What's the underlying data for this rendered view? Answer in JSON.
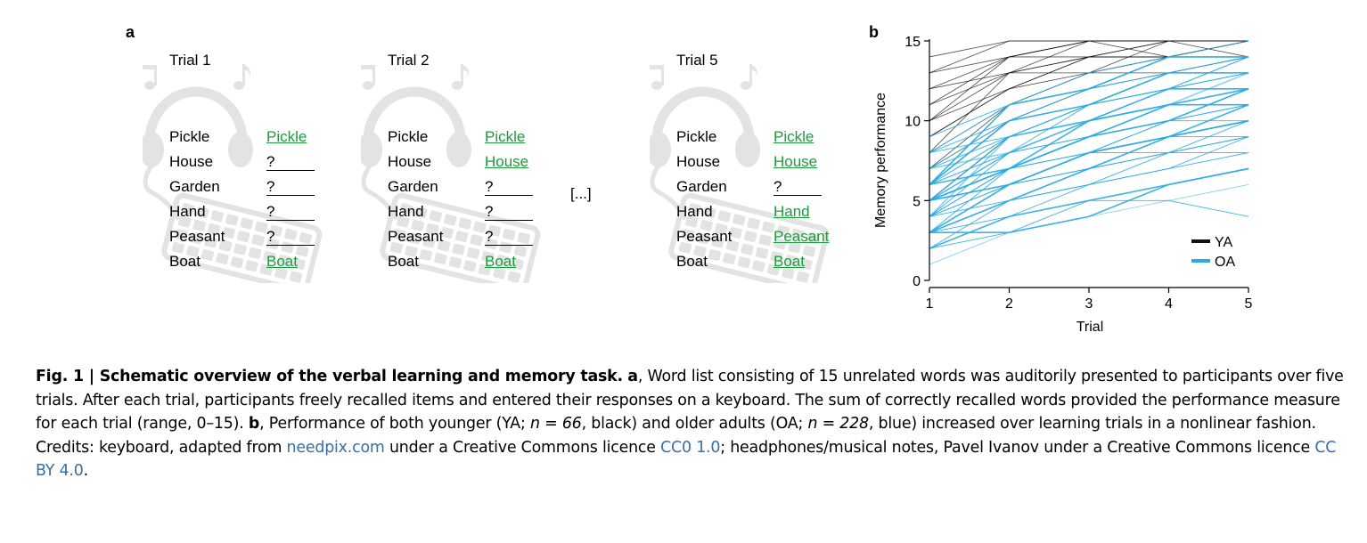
{
  "panel_a": {
    "label": "a",
    "trials": [
      {
        "title": "Trial 1",
        "rows": [
          {
            "cue": "Pickle",
            "response": "Pickle",
            "correct": true
          },
          {
            "cue": "House",
            "response": "?",
            "correct": false
          },
          {
            "cue": "Garden",
            "response": "?",
            "correct": false
          },
          {
            "cue": "Hand",
            "response": "?",
            "correct": false
          },
          {
            "cue": "Peasant",
            "response": "?",
            "correct": false
          },
          {
            "cue": "Boat",
            "response": "Boat",
            "correct": true
          }
        ]
      },
      {
        "title": "Trial 2",
        "rows": [
          {
            "cue": "Pickle",
            "response": "Pickle",
            "correct": true
          },
          {
            "cue": "House",
            "response": "House",
            "correct": true
          },
          {
            "cue": "Garden",
            "response": "?",
            "correct": false
          },
          {
            "cue": "Hand",
            "response": "?",
            "correct": false
          },
          {
            "cue": "Peasant",
            "response": "?",
            "correct": false
          },
          {
            "cue": "Boat",
            "response": "Boat",
            "correct": true
          }
        ]
      },
      {
        "title": "Trial 5",
        "rows": [
          {
            "cue": "Pickle",
            "response": "Pickle",
            "correct": true
          },
          {
            "cue": "House",
            "response": "House",
            "correct": true
          },
          {
            "cue": "Garden",
            "response": "?",
            "correct": false
          },
          {
            "cue": "Hand",
            "response": "Hand",
            "correct": true
          },
          {
            "cue": "Peasant",
            "response": "Peasant",
            "correct": true
          },
          {
            "cue": "Boat",
            "response": "Boat",
            "correct": true
          }
        ]
      }
    ],
    "ellipsis": "[...]",
    "colors": {
      "correct": "#1f9a3d",
      "decoration": "#e3e3e3"
    },
    "icons": [
      "headphones-icon",
      "musical-note-icon",
      "keyboard-icon"
    ]
  },
  "panel_b": {
    "label": "b",
    "chart_data": {
      "type": "line",
      "title": "",
      "xlabel": "Trial",
      "ylabel": "Memory performance",
      "x": [
        1,
        2,
        3,
        4,
        5
      ],
      "xlim": [
        1,
        5
      ],
      "ylim": [
        0,
        15
      ],
      "xticks": [
        "1",
        "2",
        "3",
        "4",
        "5"
      ],
      "yticks": [
        "0",
        "5",
        "10",
        "15"
      ],
      "grid": false,
      "legend_position": "bottom-right",
      "legend": [
        {
          "name": "YA",
          "color": "#111111"
        },
        {
          "name": "OA",
          "color": "#29abe2"
        }
      ],
      "series": [
        {
          "name": "YA",
          "color": "#111111",
          "lines": [
            [
              11,
              14,
              15,
              15,
              15
            ],
            [
              13,
              15,
              15,
              15,
              15
            ],
            [
              10,
              13,
              14,
              15,
              15
            ],
            [
              12,
              14,
              15,
              14,
              15
            ],
            [
              9,
              12,
              14,
              14,
              15
            ],
            [
              8,
              13,
              13,
              14,
              14
            ],
            [
              14,
              15,
              15,
              15,
              15
            ],
            [
              7,
              11,
              13,
              14,
              14
            ],
            [
              10,
              14,
              14,
              15,
              15
            ],
            [
              6,
              10,
              12,
              13,
              14
            ],
            [
              12,
              13,
              15,
              15,
              15
            ],
            [
              9,
              12,
              13,
              15,
              14
            ],
            [
              11,
              13,
              14,
              14,
              15
            ],
            [
              8,
              11,
              13,
              13,
              14
            ],
            [
              13,
              14,
              15,
              15,
              15
            ],
            [
              5,
              9,
              11,
              13,
              13
            ],
            [
              10,
              12,
              14,
              14,
              15
            ],
            [
              7,
              10,
              12,
              14,
              14
            ]
          ]
        },
        {
          "name": "OA",
          "color": "#29abe2",
          "lines": [
            [
              5,
              8,
              10,
              11,
              12
            ],
            [
              4,
              7,
              9,
              10,
              11
            ],
            [
              6,
              9,
              11,
              12,
              13
            ],
            [
              3,
              6,
              8,
              9,
              10
            ],
            [
              7,
              10,
              12,
              13,
              13
            ],
            [
              4,
              6,
              7,
              9,
              9
            ],
            [
              5,
              7,
              9,
              10,
              12
            ],
            [
              3,
              5,
              6,
              8,
              8
            ],
            [
              6,
              8,
              10,
              12,
              12
            ],
            [
              2,
              4,
              5,
              6,
              7
            ],
            [
              8,
              11,
              12,
              13,
              14
            ],
            [
              4,
              8,
              9,
              11,
              11
            ],
            [
              5,
              9,
              10,
              11,
              13
            ],
            [
              3,
              4,
              6,
              7,
              9
            ],
            [
              7,
              9,
              11,
              12,
              14
            ],
            [
              6,
              10,
              11,
              13,
              13
            ],
            [
              1,
              3,
              4,
              5,
              6
            ],
            [
              4,
              5,
              7,
              8,
              10
            ],
            [
              5,
              6,
              8,
              9,
              11
            ],
            [
              8,
              10,
              12,
              14,
              14
            ],
            [
              3,
              6,
              7,
              8,
              9
            ],
            [
              6,
              7,
              9,
              11,
              11
            ],
            [
              2,
              3,
              5,
              5,
              4
            ],
            [
              5,
              8,
              9,
              10,
              10
            ],
            [
              7,
              8,
              10,
              11,
              12
            ],
            [
              4,
              7,
              8,
              10,
              12
            ],
            [
              9,
              11,
              13,
              14,
              15
            ],
            [
              3,
              5,
              7,
              9,
              10
            ],
            [
              6,
              9,
              10,
              12,
              13
            ],
            [
              4,
              6,
              8,
              8,
              9
            ],
            [
              5,
              7,
              10,
              12,
              12
            ],
            [
              2,
              5,
              6,
              7,
              8
            ],
            [
              7,
              10,
              11,
              13,
              14
            ],
            [
              3,
              3,
              4,
              6,
              7
            ],
            [
              6,
              8,
              11,
              12,
              14
            ],
            [
              5,
              6,
              7,
              8,
              9
            ],
            [
              4,
              9,
              10,
              11,
              12
            ],
            [
              8,
              9,
              11,
              12,
              13
            ],
            [
              3,
              7,
              8,
              10,
              11
            ],
            [
              6,
              11,
              12,
              14,
              14
            ]
          ]
        }
      ]
    }
  },
  "caption": {
    "fig_label": "Fig. 1 | Schematic overview of the verbal learning and memory task.",
    "a_label": "a",
    "text1": ", Word list consisting of 15 unrelated words was auditorily presented to participants over five trials. After each trial, participants freely recalled items and entered their responses on a keyboard. The sum of correctly recalled words provided the performance measure for each trial (range, 0–15). ",
    "b_label": "b",
    "text2": ", Performance of both younger (YA; ",
    "n_ya": "n = 66",
    "text3": ", black) and older adults (OA; ",
    "n_oa": "n = 228",
    "text4": ", blue) increased over learning trials in a nonlinear fashion. Credits: keyboard, adapted from ",
    "link1": "needpix.com",
    "text5": " under a Creative Commons licence ",
    "link2": "CC0 1.0",
    "text6": "; headphones/musical notes, Pavel Ivanov under a Creative Commons licence ",
    "link3": "CC BY 4.0",
    "text7": "."
  }
}
